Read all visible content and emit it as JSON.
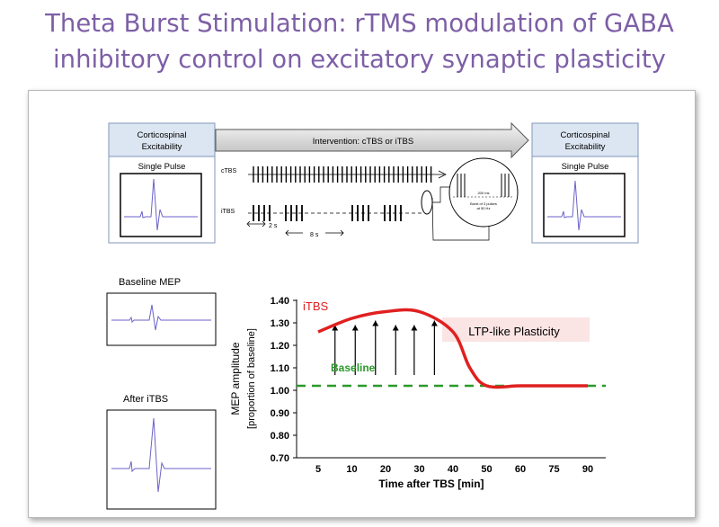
{
  "title": {
    "line1": "Theta Burst Stimulation: rTMS modulation of GABA",
    "line2": "inhibitory control on excitatory synaptic plasticity"
  },
  "protocol": {
    "pre_box": {
      "header_line1": "Corticospinal",
      "header_line2": "Excitability",
      "label": "Single Pulse"
    },
    "post_box": {
      "header_line1": "Corticospinal",
      "header_line2": "Excitability",
      "label": "Single Pulse"
    },
    "intervention_label": "Intervention: cTBS or iTBS",
    "ctbs_label": "cTBS",
    "itbs_label": "iTBS",
    "interval_2s": "2 s",
    "interval_8s": "8 s",
    "zoom_top_label": "200 ms",
    "zoom_burst_line1": "Burst of 3 pulses",
    "zoom_burst_line2": "at 50 Hz"
  },
  "traces": {
    "baseline_label": "Baseline MEP",
    "after_label": "After iTBS"
  },
  "colors": {
    "title": "#7d5fa6",
    "box_header": "#dce6f2",
    "trace": "#6b62c9",
    "itbs_curve": "#e02020",
    "baseline_line": "#2a9a2a",
    "ltp_box": "#fbe4e4"
  },
  "chart_data": {
    "type": "line",
    "xlabel": "Time after TBS [min]",
    "ylabel_line1": "MEP amplitude",
    "ylabel_line2": "[proportion of baseline]",
    "x_ticks": [
      5,
      10,
      20,
      30,
      40,
      50,
      60,
      75,
      90
    ],
    "y_ticks": [
      "0.70",
      "0.80",
      "0.90",
      "1.00",
      "1.10",
      "1.20",
      "1.30",
      "1.40"
    ],
    "ylim": [
      0.7,
      1.4
    ],
    "series": [
      {
        "name": "iTBS",
        "x_index": [
          0,
          1,
          2,
          3,
          4,
          4.5,
          5,
          6,
          7,
          8
        ],
        "values": [
          1.26,
          1.32,
          1.35,
          1.35,
          1.26,
          1.1,
          1.02,
          1.02,
          1.02,
          1.02
        ]
      }
    ],
    "baseline": {
      "label": "Baseline",
      "value": 1.02
    },
    "annotation": "LTP-like Plasticity",
    "arrows_at_x_index": [
      0.5,
      1.1,
      1.7,
      2.3,
      2.85,
      3.45
    ],
    "grid": false
  }
}
